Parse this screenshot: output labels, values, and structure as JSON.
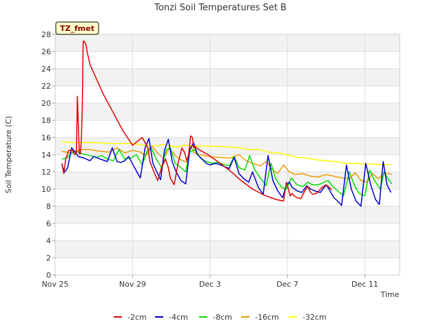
{
  "chart_data": {
    "type": "line",
    "title": "Tonzi Soil Temperatures Set B",
    "badge": "TZ_fmet",
    "xlabel": "Time",
    "ylabel": "Soil Temperature (C)",
    "xlim": [
      0,
      17.8
    ],
    "ylim": [
      0,
      28
    ],
    "x_ticks": [
      {
        "x": 0,
        "label": "Nov 25"
      },
      {
        "x": 4,
        "label": "Nov 29"
      },
      {
        "x": 8,
        "label": "Dec 3"
      },
      {
        "x": 12,
        "label": "Dec 7"
      },
      {
        "x": 16,
        "label": "Dec 11"
      }
    ],
    "y_ticks": [
      0,
      2,
      4,
      6,
      8,
      10,
      12,
      14,
      16,
      18,
      20,
      22,
      24,
      26,
      28
    ],
    "x_unit_note": "x values are days from Nov 25",
    "grid": true,
    "legend_position": "bottom",
    "series": [
      {
        "name": "-2cm",
        "color": "#dd0000",
        "x": [
          0.35,
          0.45,
          0.55,
          0.7,
          0.9,
          1.0,
          1.1,
          1.15,
          1.25,
          1.3,
          1.35,
          1.4,
          1.45,
          1.5,
          1.55,
          1.6,
          1.62,
          1.65,
          1.7,
          1.75,
          1.8,
          2.1,
          2.5,
          3.0,
          3.5,
          4.0,
          4.5,
          4.8,
          4.9,
          5.1,
          5.3,
          5.5,
          5.7,
          5.85,
          5.95,
          6.15,
          6.35,
          6.55,
          6.7,
          6.8,
          6.9,
          7.0,
          7.1,
          7.15,
          7.2,
          7.3,
          7.5,
          7.9,
          8.4,
          9.0,
          9.6,
          10.2,
          10.8,
          11.4,
          11.8,
          11.95,
          12.05,
          12.15,
          12.25,
          12.35,
          12.5,
          12.7,
          12.9,
          13.05,
          13.2,
          13.3,
          13.5,
          13.8,
          14.0,
          14.15,
          14.3
        ],
        "y": [
          13.0,
          11.8,
          13.5,
          14.5,
          14.5,
          14.0,
          14.2,
          20.8,
          14.1,
          14.1,
          15.5,
          19.0,
          27.2,
          27.2,
          27.0,
          26.8,
          26.5,
          26.0,
          25.5,
          25.0,
          24.5,
          23.0,
          21.0,
          18.9,
          16.8,
          15.1,
          16.0,
          14.8,
          13.2,
          12.0,
          11.0,
          12.5,
          13.5,
          12.5,
          11.3,
          10.5,
          13.0,
          14.8,
          14.2,
          13.3,
          14.0,
          16.2,
          16.0,
          14.8,
          15.0,
          14.8,
          14.5,
          14.0,
          13.2,
          12.2,
          11.0,
          10.0,
          9.3,
          8.8,
          8.6,
          10.8,
          10.0,
          9.2,
          9.5,
          9.2,
          9.0,
          8.9,
          9.8,
          10.3,
          9.6,
          9.4,
          9.5,
          10.2,
          10.5,
          10.2,
          9.9
        ]
      },
      {
        "name": "-4cm",
        "color": "#0000cc",
        "x": [
          0.35,
          0.5,
          0.65,
          0.85,
          1.0,
          1.2,
          1.5,
          1.8,
          2.0,
          2.2,
          2.45,
          2.7,
          2.95,
          3.2,
          3.4,
          3.6,
          3.8,
          4.1,
          4.4,
          4.65,
          4.85,
          5.05,
          5.25,
          5.45,
          5.65,
          5.85,
          6.05,
          6.25,
          6.5,
          6.75,
          6.95,
          7.15,
          7.35,
          7.55,
          7.8,
          8.0,
          8.3,
          8.55,
          8.75,
          9.0,
          9.25,
          9.5,
          9.75,
          10.0,
          10.2,
          10.5,
          10.75,
          11.0,
          11.25,
          11.5,
          11.75,
          11.95,
          12.1,
          12.25,
          12.5,
          12.75,
          13.0,
          13.2,
          13.4,
          13.7,
          14.0,
          14.2,
          14.4,
          14.6,
          14.8,
          15.05,
          15.3,
          15.55,
          15.8,
          16.05,
          16.3,
          16.55,
          16.75,
          16.95,
          17.15,
          17.35
        ],
        "y": [
          12.8,
          12.0,
          12.5,
          14.8,
          14.4,
          13.8,
          13.6,
          13.3,
          13.8,
          13.6,
          13.4,
          13.2,
          14.8,
          13.2,
          13.1,
          13.3,
          13.8,
          12.5,
          11.3,
          14.8,
          15.9,
          13.0,
          12.0,
          11.1,
          14.5,
          15.8,
          13.2,
          12.0,
          11.0,
          10.6,
          14.5,
          15.4,
          14.0,
          13.6,
          13.0,
          12.8,
          13.0,
          12.8,
          12.6,
          12.4,
          13.7,
          11.8,
          11.2,
          10.8,
          12.0,
          10.2,
          9.4,
          13.9,
          11.0,
          9.8,
          9.0,
          10.5,
          10.8,
          10.2,
          9.8,
          9.6,
          10.4,
          10.0,
          9.8,
          9.6,
          10.5,
          9.8,
          9.0,
          8.6,
          8.1,
          12.8,
          10.0,
          8.6,
          8.0,
          13.0,
          10.5,
          8.8,
          8.2,
          13.2,
          10.5,
          9.6
        ]
      },
      {
        "name": "-8cm",
        "color": "#00dd00",
        "x": [
          0.35,
          0.6,
          0.85,
          1.1,
          1.4,
          1.8,
          2.1,
          2.4,
          2.7,
          3.0,
          3.3,
          3.6,
          3.9,
          4.2,
          4.5,
          4.75,
          4.95,
          5.2,
          5.5,
          5.75,
          5.95,
          6.2,
          6.5,
          6.75,
          6.95,
          7.2,
          7.5,
          7.8,
          8.1,
          8.4,
          8.7,
          9.0,
          9.25,
          9.5,
          9.8,
          10.05,
          10.3,
          10.6,
          10.9,
          11.15,
          11.4,
          11.7,
          11.95,
          12.2,
          12.5,
          12.8,
          13.05,
          13.3,
          13.6,
          13.9,
          14.1,
          14.35,
          14.6,
          14.9,
          15.2,
          15.45,
          15.7,
          16.0,
          16.25,
          16.5,
          16.8,
          17.0,
          17.2,
          17.4
        ],
        "y": [
          13.5,
          13.6,
          14.2,
          14.4,
          14.1,
          13.9,
          13.7,
          13.9,
          13.5,
          13.3,
          14.6,
          13.5,
          13.6,
          14.0,
          12.8,
          14.4,
          14.9,
          13.6,
          12.5,
          14.6,
          14.8,
          13.0,
          12.5,
          12.0,
          14.3,
          14.6,
          13.6,
          13.2,
          13.0,
          13.1,
          12.9,
          12.7,
          13.8,
          12.5,
          12.2,
          13.9,
          12.3,
          11.3,
          10.4,
          13.0,
          11.2,
          10.2,
          10.0,
          11.3,
          10.5,
          10.3,
          10.8,
          10.5,
          10.5,
          10.8,
          11.0,
          10.3,
          9.8,
          9.2,
          12.0,
          10.5,
          9.5,
          9.2,
          12.2,
          11.0,
          10.0,
          12.0,
          11.2,
          10.6
        ]
      },
      {
        "name": "-16cm",
        "color": "#ee9900",
        "x": [
          0.35,
          0.8,
          1.3,
          1.8,
          2.3,
          2.8,
          3.2,
          3.6,
          4.0,
          4.4,
          4.7,
          5.0,
          5.3,
          5.6,
          5.9,
          6.2,
          6.5,
          6.8,
          7.0,
          7.2,
          7.5,
          7.9,
          8.4,
          9.0,
          9.5,
          9.8,
          10.2,
          10.6,
          10.9,
          11.2,
          11.5,
          11.8,
          12.1,
          12.4,
          12.8,
          13.2,
          13.6,
          14.0,
          14.4,
          14.8,
          15.2,
          15.5,
          15.8,
          16.1,
          16.4,
          16.7,
          17.0,
          17.4
        ],
        "y": [
          14.4,
          14.2,
          14.6,
          14.6,
          14.4,
          14.3,
          14.8,
          14.2,
          14.5,
          14.3,
          13.9,
          15.0,
          14.2,
          13.5,
          14.8,
          13.9,
          13.4,
          13.1,
          14.9,
          14.2,
          14.0,
          13.8,
          13.7,
          13.6,
          14.0,
          13.4,
          13.0,
          12.7,
          13.2,
          12.3,
          11.8,
          12.8,
          12.0,
          11.7,
          11.8,
          11.5,
          11.4,
          11.7,
          11.5,
          11.3,
          11.2,
          11.9,
          11.0,
          10.8,
          11.8,
          11.2,
          11.9,
          11.7
        ]
      },
      {
        "name": "-32cm",
        "color": "#ffff00",
        "x": [
          0.35,
          1.0,
          2.0,
          3.0,
          4.0,
          4.7,
          5.2,
          5.6,
          6.2,
          6.7,
          7.2,
          8.0,
          9.0,
          9.5,
          10.0,
          10.5,
          11.0,
          11.5,
          12.0,
          12.5,
          13.0,
          13.5,
          14.0,
          14.5,
          15.0,
          15.5,
          16.0,
          16.5,
          17.0,
          17.4
        ],
        "y": [
          15.5,
          15.4,
          15.4,
          15.3,
          15.3,
          15.1,
          15.0,
          15.2,
          14.9,
          15.1,
          15.0,
          15.0,
          14.9,
          14.8,
          14.6,
          14.6,
          14.3,
          14.2,
          14.0,
          13.7,
          13.6,
          13.4,
          13.3,
          13.2,
          13.0,
          13.0,
          12.9,
          12.9,
          12.8,
          12.9
        ]
      }
    ]
  }
}
